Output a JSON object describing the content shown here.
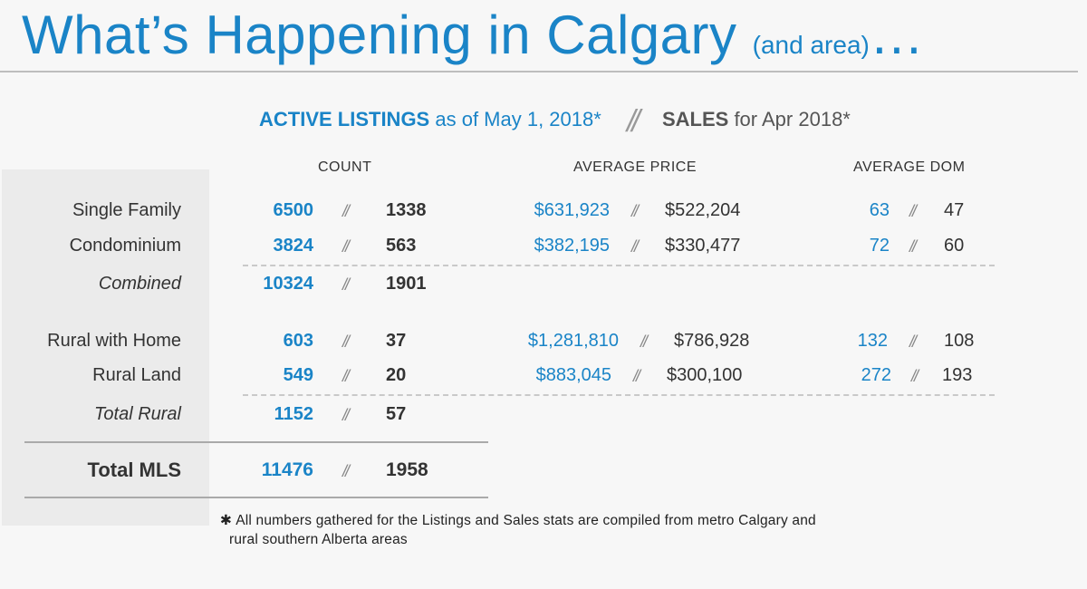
{
  "title": {
    "main": "What’s Happening in Calgary ",
    "sub": "(and area)",
    "ellipsis": "…"
  },
  "headline": {
    "listings_bold": "ACTIVE LISTINGS",
    "listings_rest": " as of May 1, 2018*",
    "separator": "//",
    "sales_bold": "SALES",
    "sales_rest": " for Apr 2018*"
  },
  "columns": {
    "count": "COUNT",
    "avg_price": "AVERAGE PRICE",
    "avg_dom": "AVERAGE DOM"
  },
  "slash": "//",
  "chart_data": {
    "type": "table",
    "title": "What’s Happening in Calgary (and area)…",
    "series": [
      {
        "name": "ACTIVE LISTINGS as of May 1, 2018*"
      },
      {
        "name": "SALES for Apr 2018*"
      }
    ],
    "rows": [
      {
        "label": "Single Family",
        "count_listings": "6500",
        "count_sales": "1338",
        "price_listings": "$631,923",
        "price_sales": "$522,204",
        "dom_listings": "63",
        "dom_sales": "47"
      },
      {
        "label": "Condominium",
        "count_listings": "3824",
        "count_sales": "563",
        "price_listings": "$382,195",
        "price_sales": "$330,477",
        "dom_listings": "72",
        "dom_sales": "60"
      },
      {
        "label": "Combined",
        "count_listings": "10324",
        "count_sales": "1901"
      },
      {
        "label": "Rural with Home",
        "count_listings": "603",
        "count_sales": "37",
        "price_listings": "$1,281,810",
        "price_sales": "$786,928",
        "dom_listings": "132",
        "dom_sales": "108"
      },
      {
        "label": "Rural Land",
        "count_listings": "549",
        "count_sales": "20",
        "price_listings": "$883,045",
        "price_sales": "$300,100",
        "dom_listings": "272",
        "dom_sales": "193"
      },
      {
        "label": "Total Rural",
        "count_listings": "1152",
        "count_sales": "57"
      },
      {
        "label": "Total MLS",
        "count_listings": "11476",
        "count_sales": "1958"
      }
    ]
  },
  "footnote": {
    "star": "✱",
    "line1": "All numbers gathered for the Listings and Sales stats are compiled from metro Calgary and",
    "line2": "rural southern Alberta areas"
  }
}
